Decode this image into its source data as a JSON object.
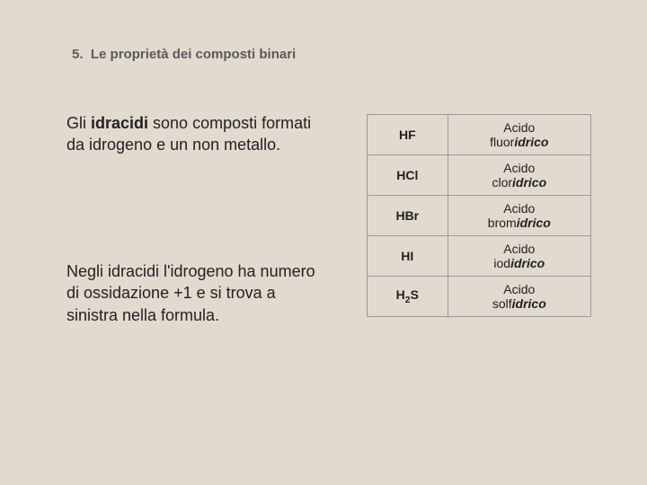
{
  "heading": {
    "number": "5.",
    "title": "Le proprietà dei composti binari"
  },
  "paragraph1": {
    "pre": "Gli ",
    "bold": "idracidi",
    "post": " sono composti formati da idrogeno e un non metallo."
  },
  "paragraph2": {
    "text": "Negli idracidi l'idrogeno ha numero di ossidazione +1 e si trova a sinistra nella formula."
  },
  "table": {
    "rows": [
      {
        "formula_html": "HF",
        "name_pre": "Acido fluor",
        "name_ital": "idrico",
        "name_post": ""
      },
      {
        "formula_html": "HCl",
        "name_pre": "Acido clor",
        "name_ital": "idrico",
        "name_post": ""
      },
      {
        "formula_html": "HBr",
        "name_pre": "Acido brom",
        "name_ital": "idrico",
        "name_post": ""
      },
      {
        "formula_html": "HI",
        "name_pre": "Acido iod",
        "name_ital": "idrico",
        "name_post": ""
      },
      {
        "formula_html": "H<sub>2</sub>S",
        "name_pre": "Acido solf",
        "name_ital": "idrico",
        "name_post": ""
      }
    ],
    "colors": {
      "border": "#9a9a9a",
      "text": "#222222",
      "background": "#e2dace"
    }
  },
  "colors": {
    "page_background": "#e2dace",
    "heading_text": "#5a5a5a",
    "body_text": "#222222"
  },
  "typography": {
    "heading_fontsize": 15,
    "body_fontsize": 18,
    "table_fontsize": 14,
    "font_family": "Verdana"
  }
}
